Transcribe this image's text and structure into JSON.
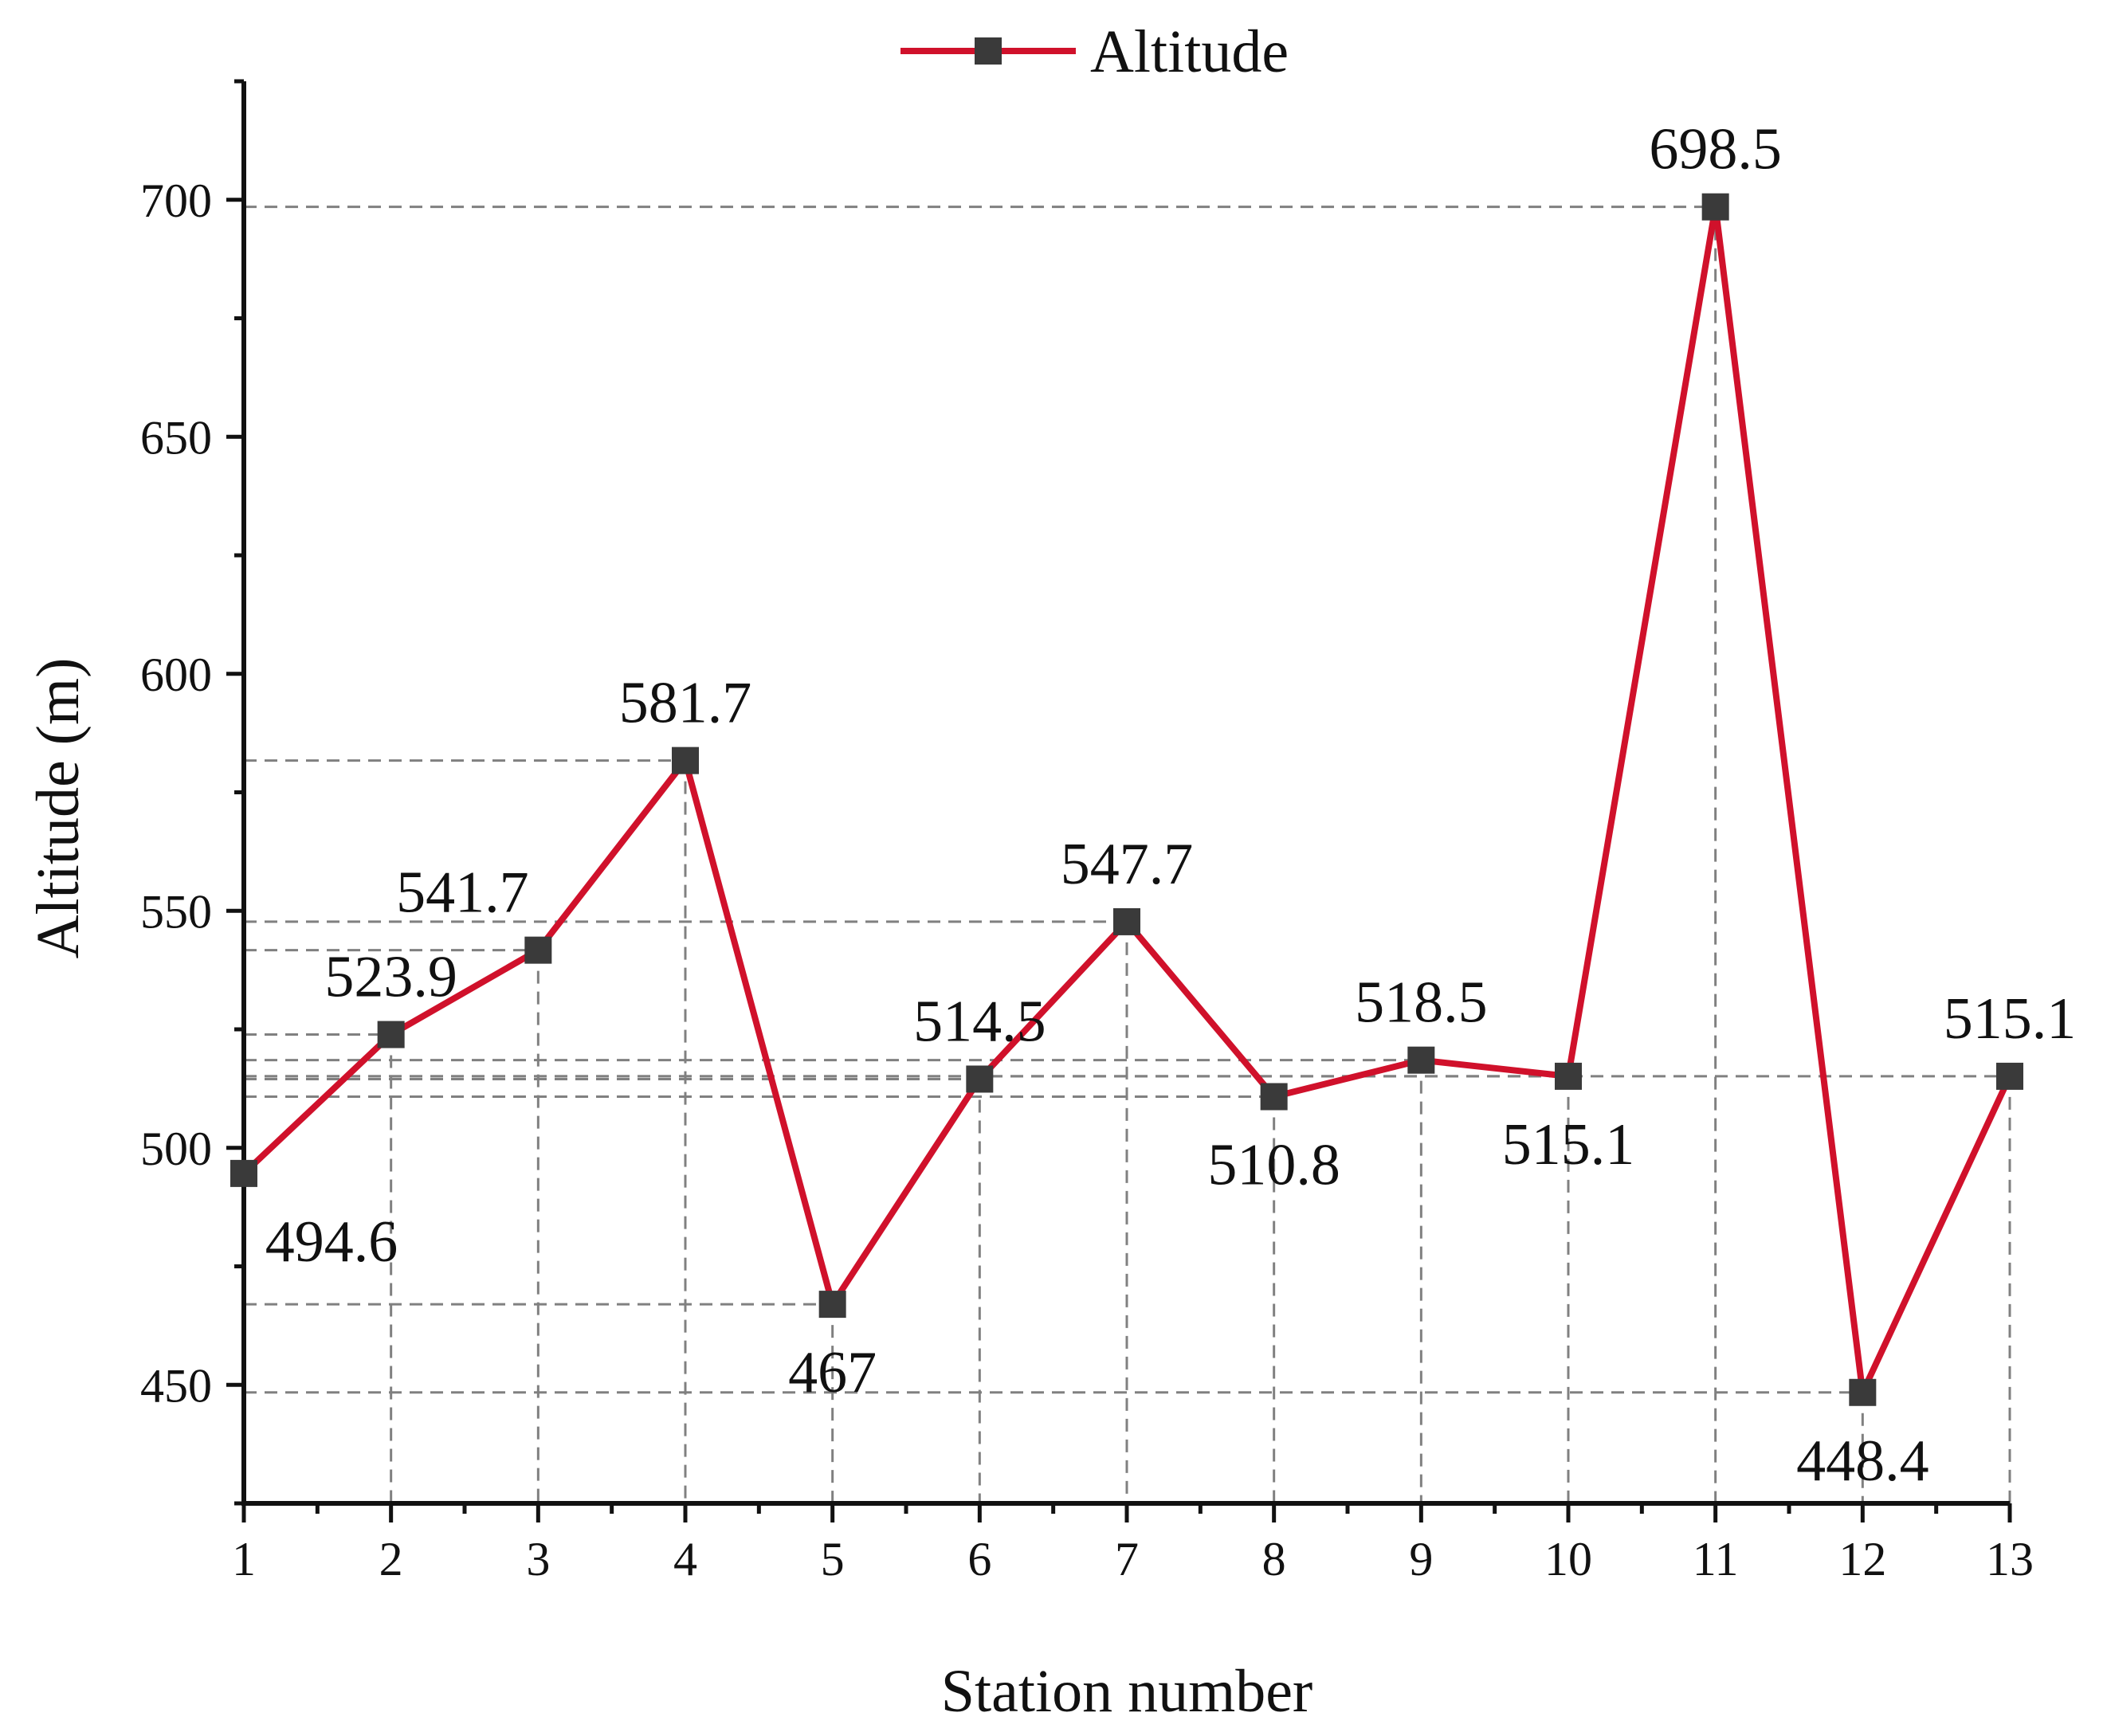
{
  "chart_data": {
    "type": "line",
    "x": [
      1,
      2,
      3,
      4,
      5,
      6,
      7,
      8,
      9,
      10,
      11,
      12,
      13
    ],
    "xlabel": "Station number",
    "ylabel": "Altitude (m)",
    "xlim": [
      1,
      13
    ],
    "ylim": [
      425,
      725
    ],
    "x_ticks": [
      1,
      2,
      3,
      4,
      5,
      6,
      7,
      8,
      9,
      10,
      11,
      12,
      13
    ],
    "y_ticks": [
      450,
      500,
      550,
      600,
      650,
      700
    ],
    "grid": false,
    "legend_position": "top-center",
    "series": [
      {
        "name": "Altitude",
        "color": "#d0112b",
        "marker": "square",
        "marker_color": "#3a3a3a",
        "values": [
          494.6,
          523.9,
          541.7,
          581.7,
          467,
          514.5,
          547.7,
          510.8,
          518.5,
          515.1,
          698.5,
          448.4,
          515.1
        ]
      }
    ],
    "data_labels": [
      "494.6",
      "523.9",
      "541.7",
      "581.7",
      "467",
      "514.5",
      "547.7",
      "510.8",
      "518.5",
      "515.1",
      "698.5",
      "448.4",
      "515.1"
    ],
    "label_placement": [
      "below-right",
      "above",
      "above-left",
      "above",
      "below",
      "above",
      "above",
      "below",
      "above",
      "below",
      "above",
      "below",
      "above"
    ],
    "drop_lines": true
  }
}
